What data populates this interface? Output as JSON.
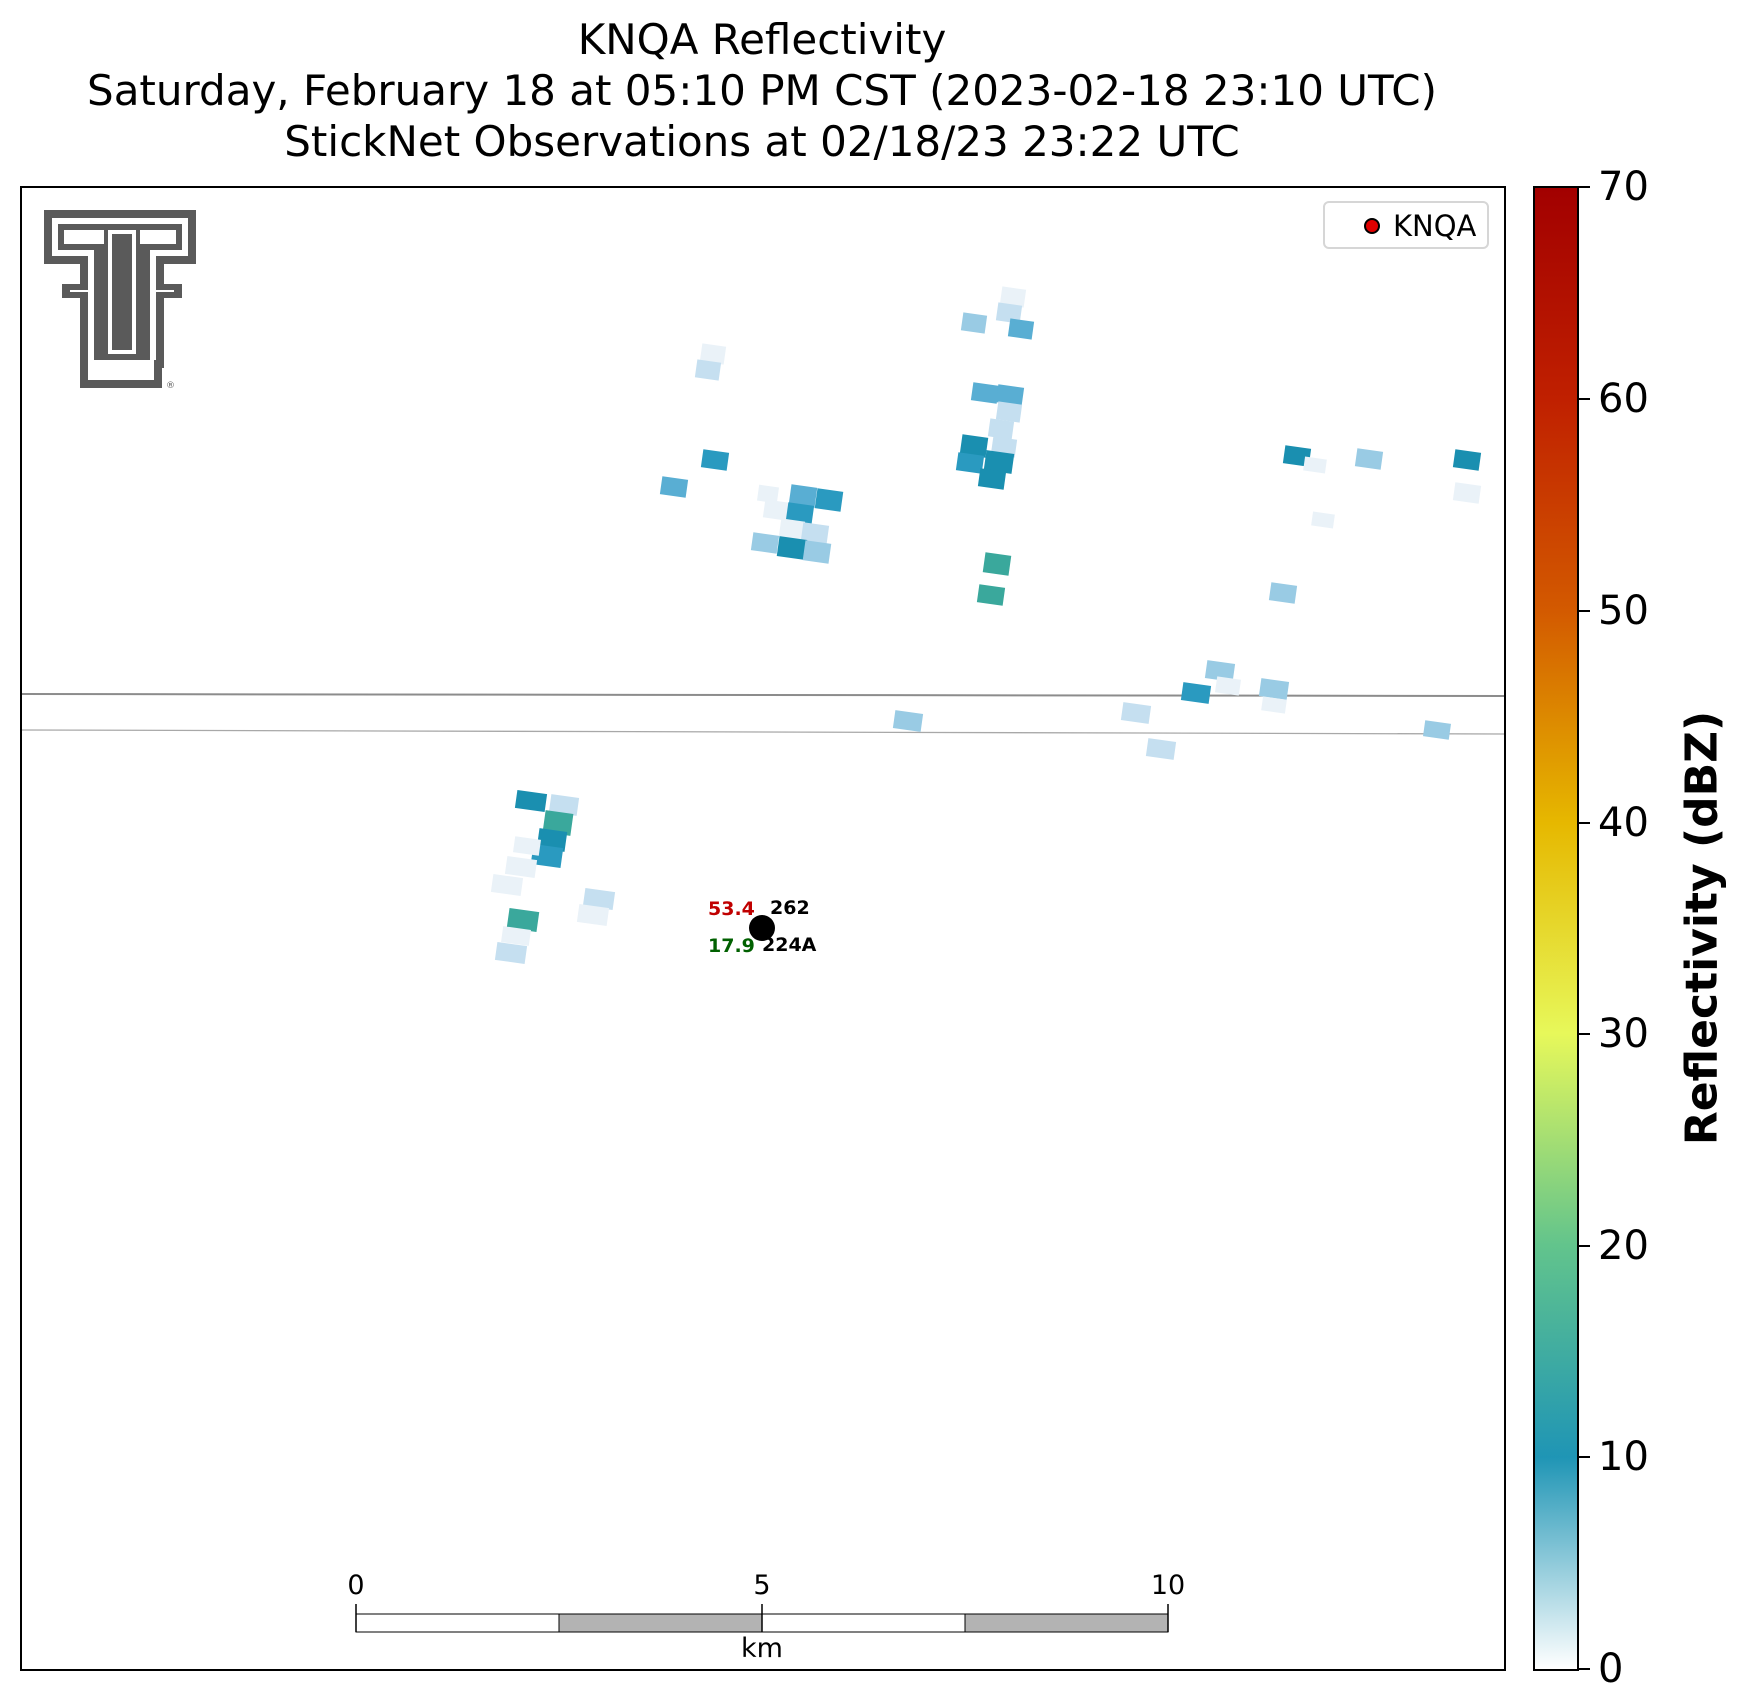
{
  "title": {
    "line1": "KNQA Reflectivity",
    "line2": "Saturday, February 18 at 05:10 PM CST (2023-02-18 23:10 UTC)",
    "line3": "StickNet Observations at 02/18/23 23:22 UTC"
  },
  "legend": {
    "label": "KNQA",
    "marker_color": "#e00000"
  },
  "logo": {
    "name": "Texas Tech Double T",
    "color": "#5a5a5a"
  },
  "colorbar": {
    "label": "Reflectivity (dBZ)",
    "ticks": [
      "0",
      "10",
      "20",
      "30",
      "40",
      "50",
      "60",
      "70"
    ],
    "range": [
      0,
      70
    ],
    "colors": [
      "#ffffff",
      "#1f95b5",
      "#62c48c",
      "#e7f85a",
      "#e6b800",
      "#d35a00",
      "#a20000"
    ]
  },
  "station": {
    "temperature": "53.4",
    "temperature_color": "#c00000",
    "dewpoint": "17.9",
    "dewpoint_color": "#006000",
    "pressure_code": "262",
    "station_id": "224A"
  },
  "scalebar": {
    "ticks": [
      "0",
      "5",
      "10"
    ],
    "unit": "km",
    "fill_color": "#b3b3b3"
  },
  "roads": {
    "color": "#8c8c8c"
  },
  "reflectivity_color_levels": [
    "#eaf2f8",
    "#c5dff0",
    "#99cbe4",
    "#59aed3",
    "#2a9ac0",
    "#1a8fb0",
    "#3aa89c"
  ]
}
